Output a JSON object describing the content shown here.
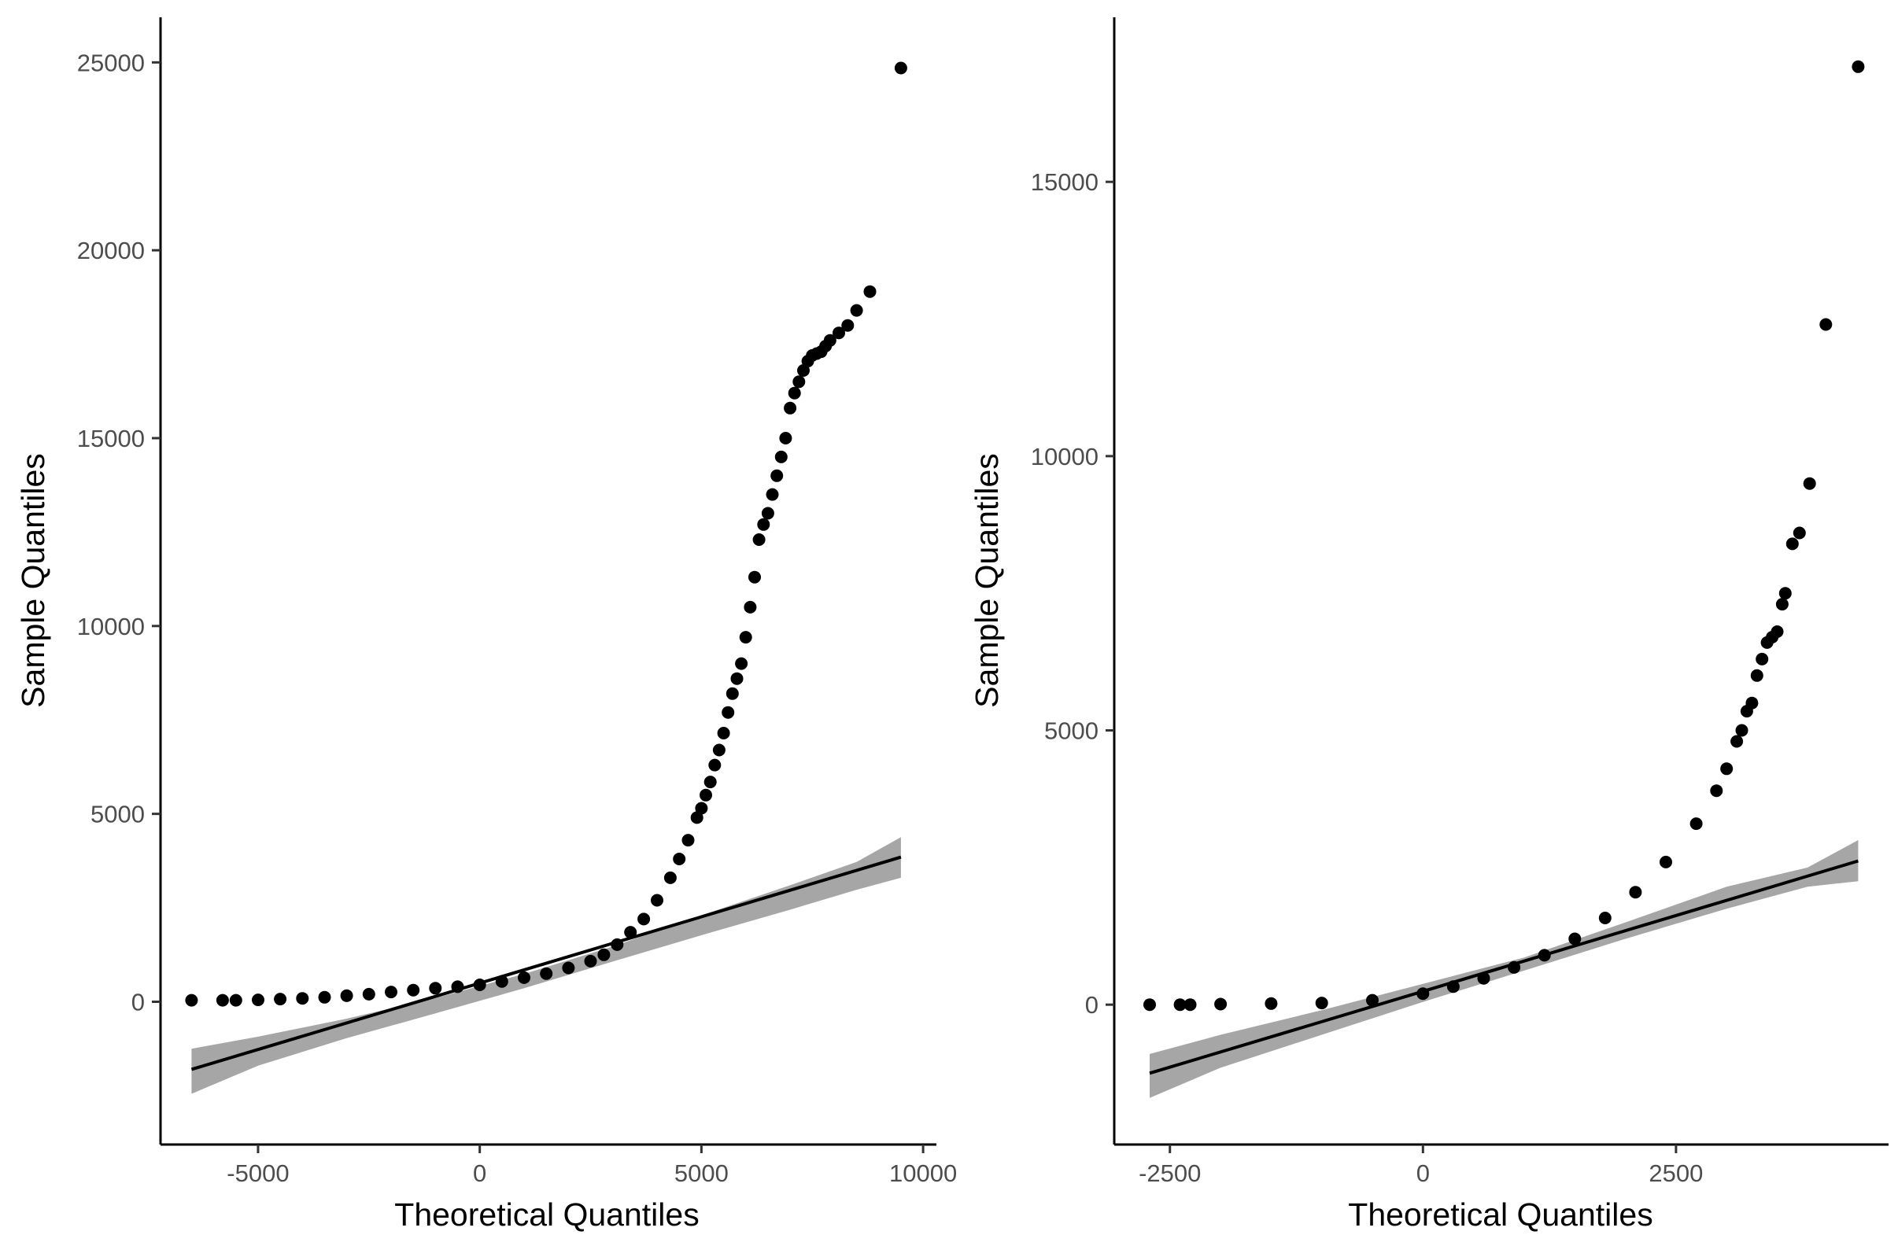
{
  "colors": {
    "points": "#000000",
    "fit_line": "#000000",
    "confidence_band": "#a6a6a6",
    "background": "#ffffff"
  },
  "chart_data": [
    {
      "type": "scatter",
      "xlabel": "Theoretical Quantiles",
      "ylabel": "Sample Quantiles",
      "xlim": [
        -7200,
        10300
      ],
      "ylim": [
        -3800,
        26200
      ],
      "x_ticks": [
        -5000,
        0,
        5000,
        10000
      ],
      "x_tick_labels": [
        "-5000",
        "0",
        "5000",
        "10000"
      ],
      "y_ticks": [
        0,
        5000,
        10000,
        15000,
        20000,
        25000
      ],
      "y_tick_labels": [
        "0",
        "5000",
        "10000",
        "15000",
        "20000",
        "25000"
      ],
      "grid": false,
      "legend": "none",
      "reference_line": {
        "x": [
          -6500,
          9500
        ],
        "y": [
          -1800,
          3850
        ]
      },
      "confidence_band": {
        "x": [
          -6500,
          -5000,
          -3000,
          -1000,
          1000,
          3000,
          5000,
          7000,
          8500,
          9500
        ],
        "lower": [
          -2450,
          -1700,
          -970,
          -310,
          360,
          1070,
          1770,
          2450,
          2980,
          3300
        ],
        "upper": [
          -1250,
          -930,
          -450,
          100,
          740,
          1470,
          2300,
          3100,
          3720,
          4380
        ]
      },
      "points": {
        "x": [
          -6500,
          -5800,
          -5500,
          -5000,
          -4500,
          -4000,
          -3500,
          -3000,
          -2500,
          -2000,
          -1500,
          -1000,
          -500,
          0,
          500,
          1000,
          1500,
          2000,
          2500,
          2800,
          3100,
          3400,
          3700,
          4000,
          4300,
          4500,
          4700,
          4900,
          5000,
          5100,
          5200,
          5300,
          5400,
          5500,
          5600,
          5700,
          5800,
          5900,
          6000,
          6100,
          6200,
          6300,
          6400,
          6500,
          6600,
          6700,
          6800,
          6900,
          7000,
          7100,
          7200,
          7300,
          7400,
          7500,
          7600,
          7700,
          7800,
          7900,
          8100,
          8300,
          8500,
          8800,
          9500
        ],
        "y": [
          40,
          40,
          40,
          50,
          70,
          90,
          120,
          160,
          200,
          260,
          310,
          360,
          400,
          450,
          540,
          640,
          750,
          900,
          1080,
          1250,
          1520,
          1850,
          2200,
          2700,
          3300,
          3800,
          4300,
          4900,
          5150,
          5500,
          5850,
          6300,
          6700,
          7150,
          7700,
          8200,
          8600,
          9000,
          9700,
          10500,
          11300,
          12300,
          12700,
          13000,
          13500,
          14000,
          14500,
          15000,
          15800,
          16200,
          16500,
          16800,
          17050,
          17200,
          17250,
          17300,
          17450,
          17600,
          17800,
          18000,
          18400,
          18900,
          24850
        ]
      }
    },
    {
      "type": "scatter",
      "xlabel": "Theoretical Quantiles",
      "ylabel": "Sample Quantiles",
      "xlim": [
        -3050,
        4600
      ],
      "ylim": [
        -2550,
        18000
      ],
      "x_ticks": [
        -2500,
        0,
        2500
      ],
      "x_tick_labels": [
        "-2500",
        "0",
        "2500"
      ],
      "y_ticks": [
        0,
        5000,
        10000,
        15000
      ],
      "y_tick_labels": [
        "0",
        "5000",
        "10000",
        "15000"
      ],
      "grid": false,
      "legend": "none",
      "reference_line": {
        "x": [
          -2700,
          4300
        ],
        "y": [
          -1250,
          2620
        ]
      },
      "confidence_band": {
        "x": [
          -2700,
          -2000,
          -1000,
          0,
          1000,
          2000,
          3000,
          3800,
          4300
        ],
        "lower": [
          -1700,
          -1150,
          -550,
          50,
          620,
          1200,
          1750,
          2150,
          2250
        ],
        "upper": [
          -900,
          -550,
          -100,
          380,
          860,
          1500,
          2150,
          2500,
          3000
        ]
      },
      "points": {
        "x": [
          -2700,
          -2400,
          -2300,
          -2000,
          -1500,
          -1000,
          -500,
          0,
          300,
          600,
          900,
          1200,
          1500,
          1800,
          2100,
          2400,
          2700,
          2900,
          3000,
          3100,
          3150,
          3200,
          3250,
          3300,
          3350,
          3400,
          3450,
          3500,
          3550,
          3580,
          3650,
          3720,
          3820,
          3980,
          4300
        ],
        "y": [
          0,
          0,
          0,
          10,
          20,
          30,
          80,
          200,
          330,
          480,
          680,
          900,
          1200,
          1580,
          2050,
          2600,
          3300,
          3900,
          4300,
          4800,
          5000,
          5350,
          5500,
          6000,
          6300,
          6600,
          6700,
          6800,
          7300,
          7500,
          8400,
          8600,
          9500,
          12400,
          17100
        ]
      }
    }
  ]
}
